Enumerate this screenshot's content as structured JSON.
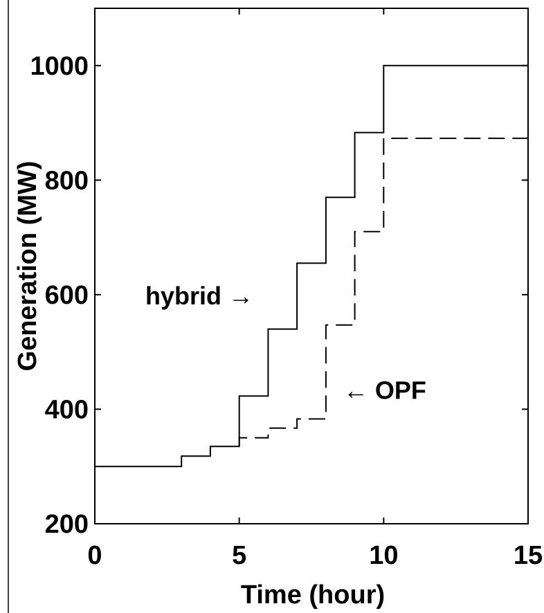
{
  "chart_data": {
    "type": "line",
    "title": "",
    "xlabel": "Time (hour)",
    "ylabel": "Generation (MW)",
    "xlim": [
      0,
      15
    ],
    "ylim": [
      200,
      1100
    ],
    "xticks": [
      0,
      5,
      10,
      15
    ],
    "yticks": [
      200,
      400,
      600,
      800,
      1000
    ],
    "xtick_labels": [
      "0",
      "5",
      "10",
      "15"
    ],
    "ytick_labels": [
      "200",
      "400",
      "600",
      "800",
      "1000"
    ],
    "grid": false,
    "legend": "none",
    "series": [
      {
        "style": "solid-step",
        "color": "#000000",
        "x": [
          0,
          3,
          3,
          4,
          4,
          5,
          5,
          6,
          6,
          7,
          7,
          8,
          8,
          9,
          9,
          10,
          10,
          15
        ],
        "y": [
          300,
          300,
          318,
          318,
          335,
          335,
          423,
          423,
          540,
          540,
          655,
          655,
          770,
          770,
          883,
          883,
          1000,
          1000
        ]
      },
      {
        "style": "dashed-step",
        "color": "#000000",
        "x": [
          5,
          5,
          6,
          6,
          7,
          7,
          8,
          8,
          9,
          9,
          10,
          10,
          15
        ],
        "y": [
          335,
          350,
          350,
          367,
          367,
          383,
          383,
          547,
          547,
          710,
          710,
          873,
          873
        ]
      }
    ],
    "annotations": [
      {
        "text": "hybrid →",
        "x": 1.75,
        "y": 583,
        "anchor": "start"
      },
      {
        "text": "← OPF",
        "x": 8.6,
        "y": 418,
        "anchor": "start"
      }
    ]
  }
}
